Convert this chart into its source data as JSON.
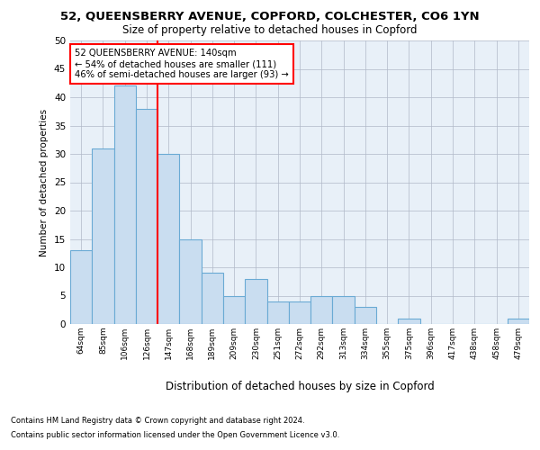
{
  "title_line1": "52, QUEENSBERRY AVENUE, COPFORD, COLCHESTER, CO6 1YN",
  "title_line2": "Size of property relative to detached houses in Copford",
  "xlabel": "Distribution of detached houses by size in Copford",
  "ylabel": "Number of detached properties",
  "categories": [
    "64sqm",
    "85sqm",
    "106sqm",
    "126sqm",
    "147sqm",
    "168sqm",
    "189sqm",
    "209sqm",
    "230sqm",
    "251sqm",
    "272sqm",
    "292sqm",
    "313sqm",
    "334sqm",
    "355sqm",
    "375sqm",
    "396sqm",
    "417sqm",
    "438sqm",
    "458sqm",
    "479sqm"
  ],
  "values": [
    13,
    31,
    42,
    38,
    30,
    15,
    9,
    5,
    8,
    4,
    4,
    5,
    5,
    3,
    0,
    1,
    0,
    0,
    0,
    0,
    1
  ],
  "bar_color": "#c9ddf0",
  "bar_edge_color": "#6aaad4",
  "red_line_x": 3.5,
  "annotation_text": "52 QUEENSBERRY AVENUE: 140sqm\n← 54% of detached houses are smaller (111)\n46% of semi-detached houses are larger (93) →",
  "annotation_box_color": "white",
  "annotation_box_edge": "red",
  "ylim": [
    0,
    50
  ],
  "yticks": [
    0,
    5,
    10,
    15,
    20,
    25,
    30,
    35,
    40,
    45,
    50
  ],
  "footer_line1": "Contains HM Land Registry data © Crown copyright and database right 2024.",
  "footer_line2": "Contains public sector information licensed under the Open Government Licence v3.0.",
  "bg_color": "#ffffff",
  "plot_bg_color": "#e8f0f8"
}
